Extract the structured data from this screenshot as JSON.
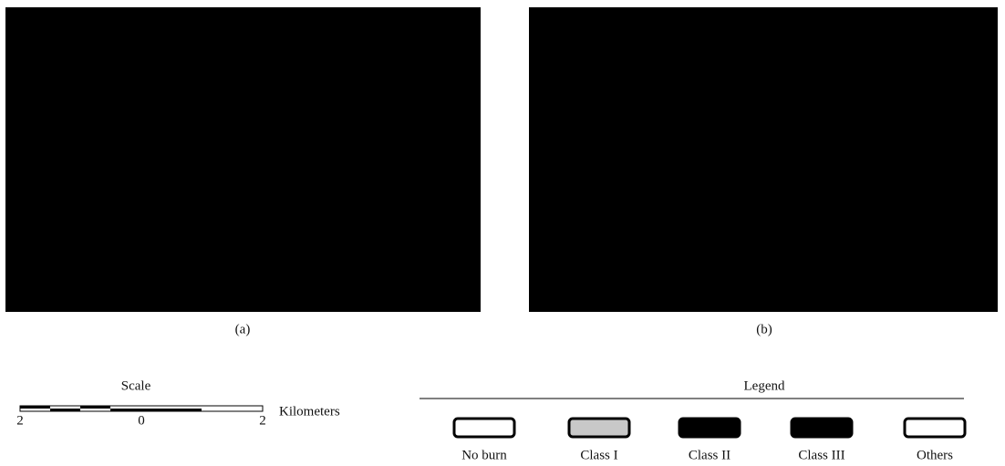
{
  "panels": [
    {
      "caption": "(a)"
    },
    {
      "caption": "(b)"
    }
  ],
  "scale": {
    "title": "Scale",
    "ticks": [
      "2",
      "0",
      "2"
    ],
    "unit": "Kilometers"
  },
  "legend": {
    "title": "Legend",
    "items": [
      "No burn",
      "Class I",
      "Class II",
      "Class III",
      "Others"
    ]
  }
}
